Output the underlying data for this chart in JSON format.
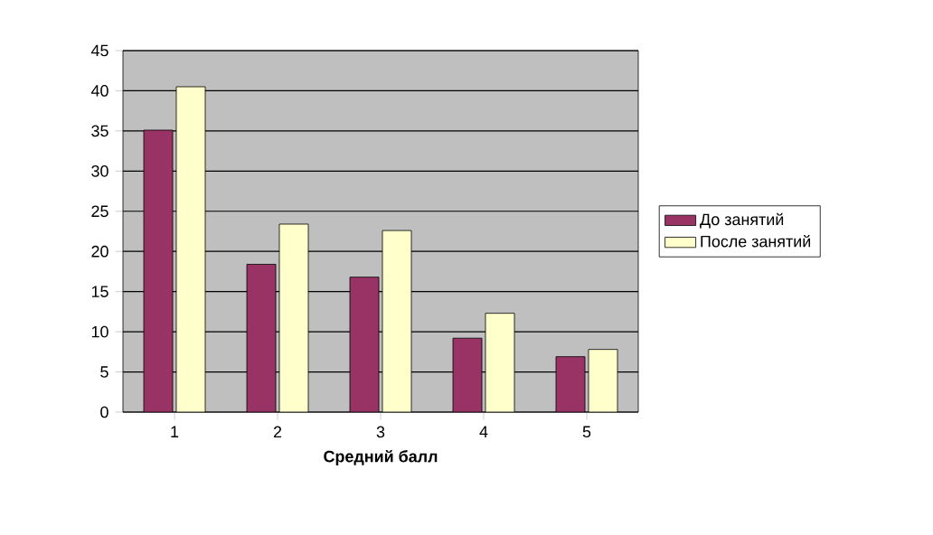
{
  "chart_data": {
    "type": "bar",
    "xlabel": "Средний балл",
    "categories": [
      "1",
      "2",
      "3",
      "4",
      "5"
    ],
    "series": [
      {
        "name": "До занятий",
        "color": "#993366",
        "values": [
          35.1,
          18.4,
          16.8,
          9.2,
          6.9
        ]
      },
      {
        "name": "После занятий",
        "color": "#ffffcc",
        "values": [
          40.5,
          23.4,
          22.6,
          12.3,
          7.8
        ]
      }
    ],
    "ylim": [
      0,
      45
    ],
    "yticks": [
      0,
      5,
      10,
      15,
      20,
      25,
      30,
      35,
      40,
      45
    ],
    "grid": "y",
    "legend": "right"
  }
}
